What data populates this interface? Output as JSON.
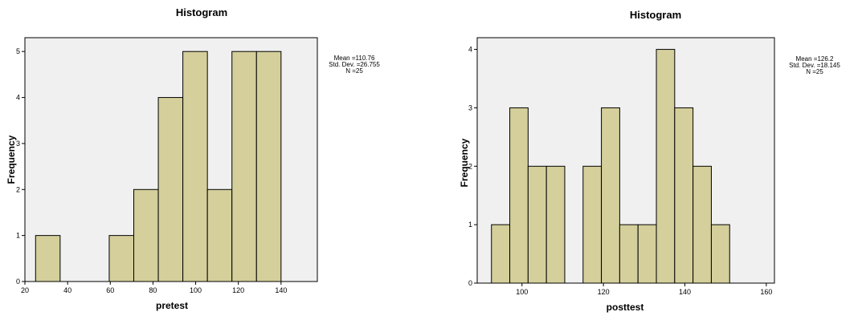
{
  "chart_data": [
    {
      "type": "bar",
      "title": "Histogram",
      "xlabel": "pretest",
      "ylabel": "Frequency",
      "xlim": [
        20,
        157
      ],
      "ylim": [
        0,
        5.3
      ],
      "xticks": [
        20,
        40,
        60,
        80,
        100,
        120,
        140
      ],
      "yticks": [
        0,
        1,
        2,
        3,
        4,
        5
      ],
      "bin_width": 11.5,
      "bins": [
        {
          "start": 25.0,
          "value": 1
        },
        {
          "start": 36.5,
          "value": 0
        },
        {
          "start": 48.0,
          "value": 0
        },
        {
          "start": 59.5,
          "value": 1
        },
        {
          "start": 71.0,
          "value": 2
        },
        {
          "start": 82.5,
          "value": 4
        },
        {
          "start": 94.0,
          "value": 5
        },
        {
          "start": 105.5,
          "value": 2
        },
        {
          "start": 117.0,
          "value": 5
        },
        {
          "start": 128.5,
          "value": 5
        }
      ],
      "stats": {
        "mean": "Mean =110.76",
        "sd": "Std. Dev. =26.755",
        "n": "N =25"
      }
    },
    {
      "type": "bar",
      "title": "Histogram",
      "xlabel": "posttest",
      "ylabel": "Frequency",
      "xlim": [
        89,
        162
      ],
      "ylim": [
        0,
        4.2
      ],
      "xticks": [
        100,
        120,
        140,
        160
      ],
      "yticks": [
        0,
        1,
        2,
        3,
        4
      ],
      "bin_width": 4.5,
      "bins": [
        {
          "start": 92.5,
          "value": 1
        },
        {
          "start": 97.0,
          "value": 3
        },
        {
          "start": 101.5,
          "value": 2
        },
        {
          "start": 106.0,
          "value": 2
        },
        {
          "start": 110.5,
          "value": 0
        },
        {
          "start": 115.0,
          "value": 2
        },
        {
          "start": 119.5,
          "value": 3
        },
        {
          "start": 124.0,
          "value": 1
        },
        {
          "start": 128.5,
          "value": 1
        },
        {
          "start": 133.0,
          "value": 4
        },
        {
          "start": 137.5,
          "value": 3
        },
        {
          "start": 142.0,
          "value": 2
        },
        {
          "start": 146.5,
          "value": 1
        }
      ],
      "stats": {
        "mean": "Mean =126.2",
        "sd": "Std. Dev. =18.145",
        "n": "N =25"
      }
    }
  ],
  "colors": {
    "plot_background": "#f0f0f0",
    "bar_fill": "#d4cf9b",
    "bar_stroke": "#000000"
  }
}
